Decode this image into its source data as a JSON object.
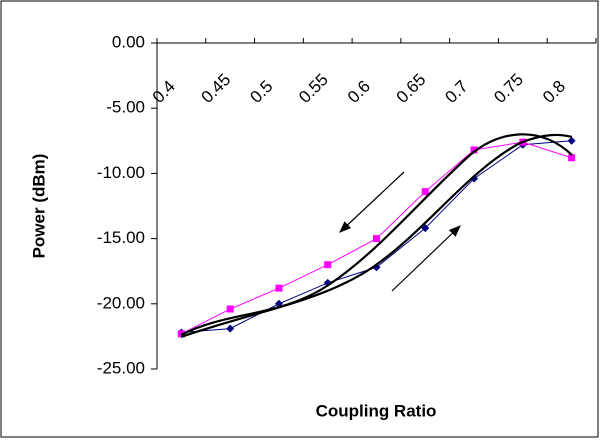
{
  "chart_data": {
    "type": "line",
    "x_label": "Coupling Ratio",
    "y_label": "Power (dBm)",
    "categories": [
      "0.4",
      "0.45",
      "0.5",
      "0.55",
      "0.6",
      "0.65",
      "0.7",
      "0.75",
      "0.8"
    ],
    "series": [
      {
        "color": "#000080",
        "marker": "diamond",
        "values": [
          -22.2,
          -21.9,
          -20.0,
          -18.4,
          -17.2,
          -14.2,
          -10.4,
          -7.8,
          -7.5
        ]
      },
      {
        "color": "#ff00ff",
        "marker": "square",
        "values": [
          -22.3,
          -20.4,
          -18.8,
          -17.0,
          -15.0,
          -11.4,
          -8.2,
          -7.6,
          -8.8
        ]
      }
    ],
    "ylim": [
      -25,
      0
    ],
    "yticks": [
      {
        "value": 0,
        "label": "0.00"
      },
      {
        "value": -5,
        "label": "-5.00"
      },
      {
        "value": -10,
        "label": "-10.00"
      },
      {
        "value": -15,
        "label": "-15.00"
      },
      {
        "value": -20,
        "label": "-20.00"
      },
      {
        "value": -25,
        "label": "-25.00"
      }
    ],
    "grid": false
  }
}
